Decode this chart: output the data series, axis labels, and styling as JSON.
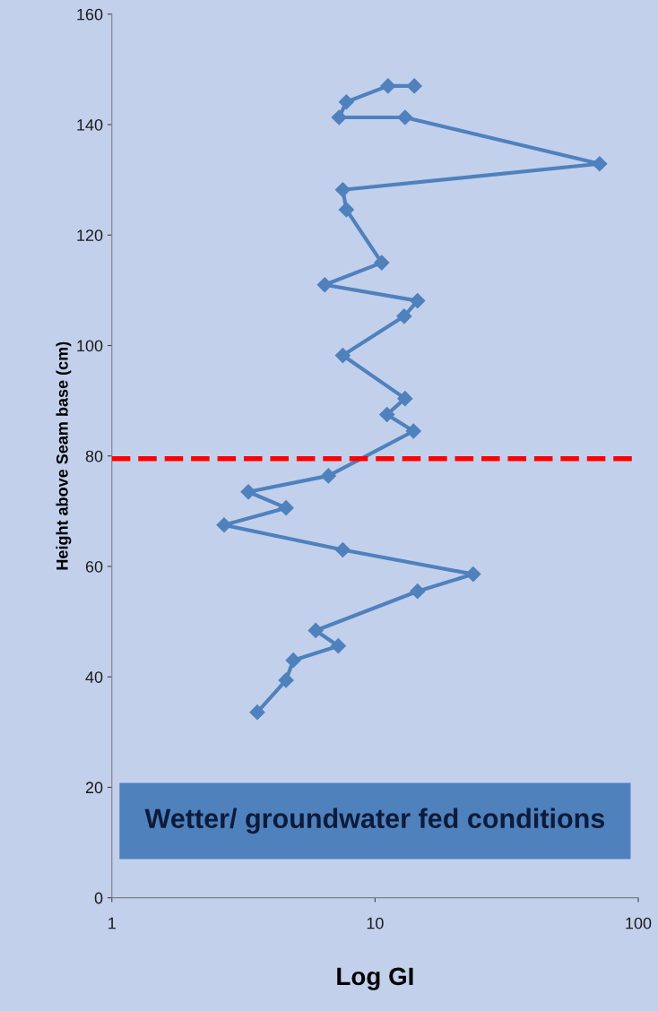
{
  "chart_data": {
    "type": "line",
    "xlabel": "Log GI",
    "ylabel": "Height above Seam base (cm)",
    "x": [
      3.57,
      4.59,
      4.89,
      7.25,
      5.95,
      14.5,
      23.6,
      7.54,
      2.67,
      4.59,
      3.3,
      6.65,
      14.0,
      11.1,
      13.0,
      7.54,
      12.9,
      14.5,
      6.44,
      10.6,
      7.78,
      7.54,
      71.3,
      13.0,
      7.3,
      7.78,
      11.2,
      14.1
    ],
    "series": [
      {
        "color": "#4f81bd",
        "values": [
          33.6,
          39.4,
          43.0,
          45.6,
          48.4,
          55.5,
          58.6,
          63.0,
          67.5,
          70.6,
          73.5,
          76.4,
          84.5,
          87.5,
          90.4,
          98.2,
          105.3,
          108.1,
          111.0,
          115.0,
          124.6,
          128.2,
          132.9,
          141.3,
          141.3,
          144.1,
          147.0,
          147.0
        ]
      }
    ],
    "log": "x",
    "xlim": [
      1,
      100
    ],
    "xticks": [
      1,
      10,
      100
    ],
    "ylim": [
      0,
      160
    ],
    "yticks": [
      0,
      20,
      40,
      60,
      80,
      100,
      120,
      140,
      160
    ],
    "marker": "diamond",
    "line_style": "solid",
    "grid": false,
    "ref_lines": [
      {
        "axis": "y",
        "value": 79.5,
        "color": "#ff0000",
        "line_style": "dashed"
      }
    ],
    "annotations": [
      "Wetter/ groundwater fed conditions"
    ]
  }
}
